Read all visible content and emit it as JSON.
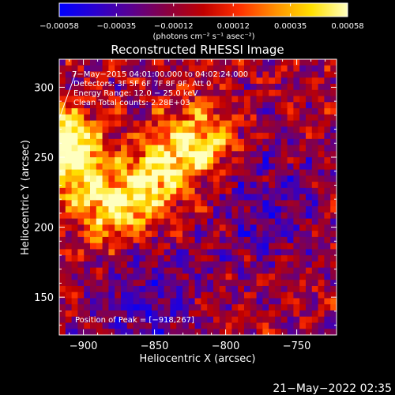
{
  "chart_data": {
    "type": "heatmap",
    "title": "Reconstructed RHESSI Image",
    "xlabel": "Heliocentric X (arcsec)",
    "ylabel": "Heliocentric Y (arcsec)",
    "xlim": [
      -917,
      -722
    ],
    "ylim": [
      123,
      320
    ],
    "x_ticks": [
      -900,
      -850,
      -800,
      -750
    ],
    "y_ticks": [
      150,
      200,
      250,
      300
    ],
    "x_tick_labels": [
      "−900",
      "−850",
      "−800",
      "−750"
    ],
    "y_tick_labels": [
      "150",
      "200",
      "250",
      "300"
    ],
    "colorbar": {
      "min": -0.00058,
      "max": 0.00058,
      "ticks": [
        -0.00058,
        -0.00035,
        -0.00012,
        0.00012,
        0.00035,
        0.00058
      ],
      "tick_labels": [
        "−0.00058",
        "−0.00035",
        "−0.00012",
        "0.00012",
        "0.00035",
        "0.00058"
      ],
      "unit_label": "(photons cm⁻² s⁻¹ asec⁻²)",
      "colors": [
        "#0000ff",
        "#2a00d0",
        "#5a0090",
        "#8a0040",
        "#c00000",
        "#ff3000",
        "#ff9000",
        "#ffe000",
        "#ffffc0"
      ]
    },
    "annotations": {
      "time_range": "7−May−2015 04:01:00.000 to 04:02:24.000",
      "detectors": "Detectors: 3F 5F 6F 7F 8F 9F, Att 0",
      "energy_range": "Energy Range: 12.0 − 25.0 keV",
      "clean": "Clean   Total counts: 2.28E+03",
      "peak": "Position of Peak = [−918,267]"
    },
    "peak_position": [
      -918,
      267
    ],
    "emission_ridge": {
      "description_points": [
        [
          -905,
          245
        ],
        [
          -880,
          215
        ],
        [
          -860,
          225
        ],
        [
          -840,
          245
        ],
        [
          -820,
          260
        ]
      ]
    }
  },
  "footer": {
    "timestamp": "21−May−2022 02:35"
  }
}
